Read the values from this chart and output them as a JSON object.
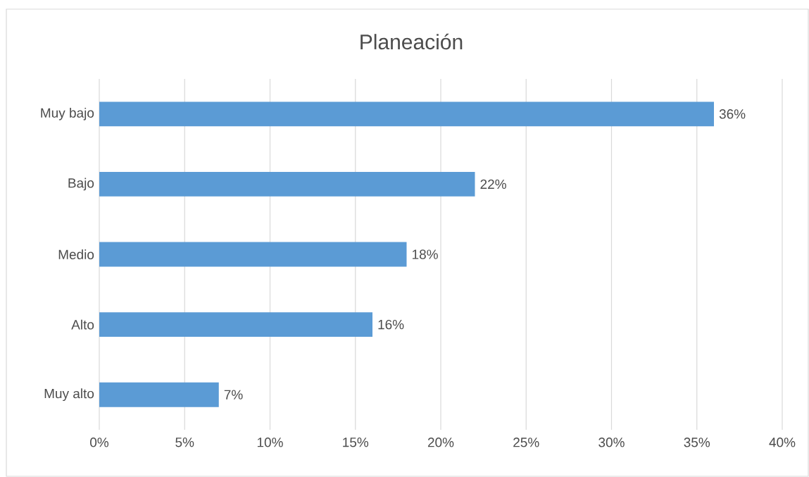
{
  "chart_data": {
    "type": "bar",
    "orientation": "horizontal",
    "title": "Planeación",
    "categories": [
      "Muy bajo",
      "Bajo",
      "Medio",
      "Alto",
      "Muy alto"
    ],
    "values": [
      36,
      22,
      18,
      16,
      7
    ],
    "value_labels": [
      "36%",
      "22%",
      "18%",
      "16%",
      "7%"
    ],
    "color": "#5b9bd5",
    "xlim": [
      0,
      40
    ],
    "xticks": [
      {
        "value": 0,
        "label": "0%"
      },
      {
        "value": 5,
        "label": "5%"
      },
      {
        "value": 10,
        "label": "10%"
      },
      {
        "value": 15,
        "label": "15%"
      },
      {
        "value": 20,
        "label": "20%"
      },
      {
        "value": 25,
        "label": "25%"
      },
      {
        "value": 30,
        "label": "30%"
      },
      {
        "value": 35,
        "label": "35%"
      },
      {
        "value": 40,
        "label": "40%"
      }
    ],
    "grid": "x"
  }
}
